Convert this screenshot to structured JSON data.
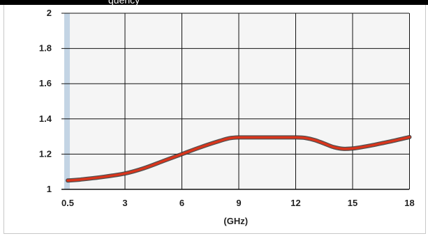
{
  "header": {
    "title": "",
    "visible_title_fragment": "quency"
  },
  "colors": {
    "title_bar": "#000000",
    "plot_background": "#f5f5f5",
    "grid": "#111111",
    "axis_band": "#c3d4e4",
    "series_line": "#d9351c"
  },
  "chart_data": {
    "type": "line",
    "title": "",
    "xlabel": "(GHz)",
    "ylabel": "",
    "xlim": [
      0.5,
      18
    ],
    "ylim": [
      1,
      2
    ],
    "grid": true,
    "x_ticks": [
      "0.5",
      "3",
      "6",
      "9",
      "12",
      "15",
      "18"
    ],
    "y_ticks": [
      "1",
      "1.2",
      "1.4",
      "1.6",
      "1.8",
      "2"
    ],
    "series": [
      {
        "x": [
          0.5,
          1,
          2,
          3,
          4,
          5,
          6,
          7,
          8,
          8.5,
          9,
          10,
          11,
          12,
          12.5,
          13,
          13.5,
          14,
          14.5,
          15,
          15.5,
          16,
          17,
          18
        ],
        "y": [
          1.05,
          1.055,
          1.07,
          1.09,
          1.12,
          1.16,
          1.2,
          1.24,
          1.275,
          1.29,
          1.295,
          1.295,
          1.295,
          1.295,
          1.292,
          1.28,
          1.26,
          1.24,
          1.23,
          1.232,
          1.24,
          1.25,
          1.272,
          1.297
        ]
      }
    ]
  }
}
